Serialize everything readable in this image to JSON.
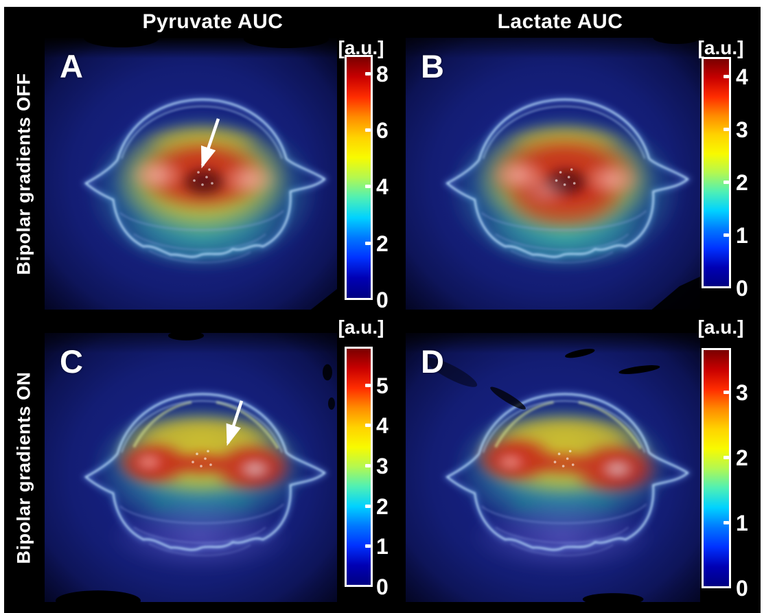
{
  "figure": {
    "column_headers": [
      {
        "label": "Pyruvate AUC"
      },
      {
        "label": "Lactate AUC"
      }
    ],
    "row_headers": [
      {
        "label": "Bipolar gradients OFF"
      },
      {
        "label": "Bipolar gradients ON"
      }
    ],
    "panels": [
      {
        "letter": "A",
        "column": "Pyruvate AUC",
        "row": "Bipolar gradients OFF",
        "variant": "off",
        "has_arrow": true,
        "arrow": {
          "from": [
            253,
            118
          ],
          "to": [
            230,
            186
          ]
        },
        "colorbar": {
          "unit": "[a.u.]",
          "ticks": [
            8,
            6,
            4,
            2,
            0
          ],
          "min": 0,
          "top_value": 8.68
        }
      },
      {
        "letter": "B",
        "column": "Lactate AUC",
        "row": "Bipolar gradients OFF",
        "variant": "off",
        "has_arrow": false,
        "arrow": null,
        "colorbar": {
          "unit": "[a.u.]",
          "ticks": [
            4,
            3,
            2,
            1,
            0
          ],
          "min": 0,
          "top_value": 4.37
        }
      },
      {
        "letter": "C",
        "column": "Pyruvate AUC",
        "row": "Bipolar gradients ON",
        "variant": "on",
        "has_arrow": true,
        "arrow": {
          "from": [
            287,
            100
          ],
          "to": [
            267,
            162
          ]
        },
        "colorbar": {
          "unit": "[a.u.]",
          "ticks": [
            5,
            4,
            3,
            2,
            1,
            0
          ],
          "min": 0,
          "top_value": 5.97
        }
      },
      {
        "letter": "D",
        "column": "Lactate AUC",
        "row": "Bipolar gradients ON",
        "variant": "on",
        "has_arrow": false,
        "arrow": null,
        "colorbar": {
          "unit": "[a.u.]",
          "ticks": [
            3,
            2,
            1,
            0
          ],
          "min": 0,
          "top_value": 3.68
        }
      }
    ]
  },
  "colors": {
    "frame": "#ffffff",
    "background": "#000000",
    "text": "#ffffff",
    "panel_navy": "#111b6e",
    "outline_blue": "#aadcf8",
    "jet_stops": [
      "#7a0000",
      "#c80000",
      "#ff2d00",
      "#ff8c00",
      "#ffd200",
      "#f8fa00",
      "#b4f850",
      "#50f0b4",
      "#00d2ff",
      "#0078ff",
      "#0032ff",
      "#0000b4",
      "#000082"
    ]
  },
  "chart_data": [
    {
      "type": "heatmap",
      "panel": "A",
      "title": "Pyruvate AUC — Bipolar gradients OFF",
      "colorbar_unit": "[a.u.]",
      "colorbar_ticks": [
        0,
        2,
        4,
        6,
        8
      ],
      "colorbar_range": [
        0,
        8.7
      ],
      "annotation": "white arrow pointing to brain midline hot spot"
    },
    {
      "type": "heatmap",
      "panel": "B",
      "title": "Lactate AUC — Bipolar gradients OFF",
      "colorbar_unit": "[a.u.]",
      "colorbar_ticks": [
        0,
        1,
        2,
        3,
        4
      ],
      "colorbar_range": [
        0,
        4.4
      ],
      "annotation": ""
    },
    {
      "type": "heatmap",
      "panel": "C",
      "title": "Pyruvate AUC — Bipolar gradients ON",
      "colorbar_unit": "[a.u.]",
      "colorbar_ticks": [
        0,
        1,
        2,
        3,
        4,
        5
      ],
      "colorbar_range": [
        0,
        6.0
      ],
      "annotation": "white arrow pointing to brain midline between lobes"
    },
    {
      "type": "heatmap",
      "panel": "D",
      "title": "Lactate AUC — Bipolar gradients ON",
      "colorbar_unit": "[a.u.]",
      "colorbar_ticks": [
        0,
        1,
        2,
        3
      ],
      "colorbar_range": [
        0,
        3.7
      ],
      "annotation": ""
    }
  ]
}
